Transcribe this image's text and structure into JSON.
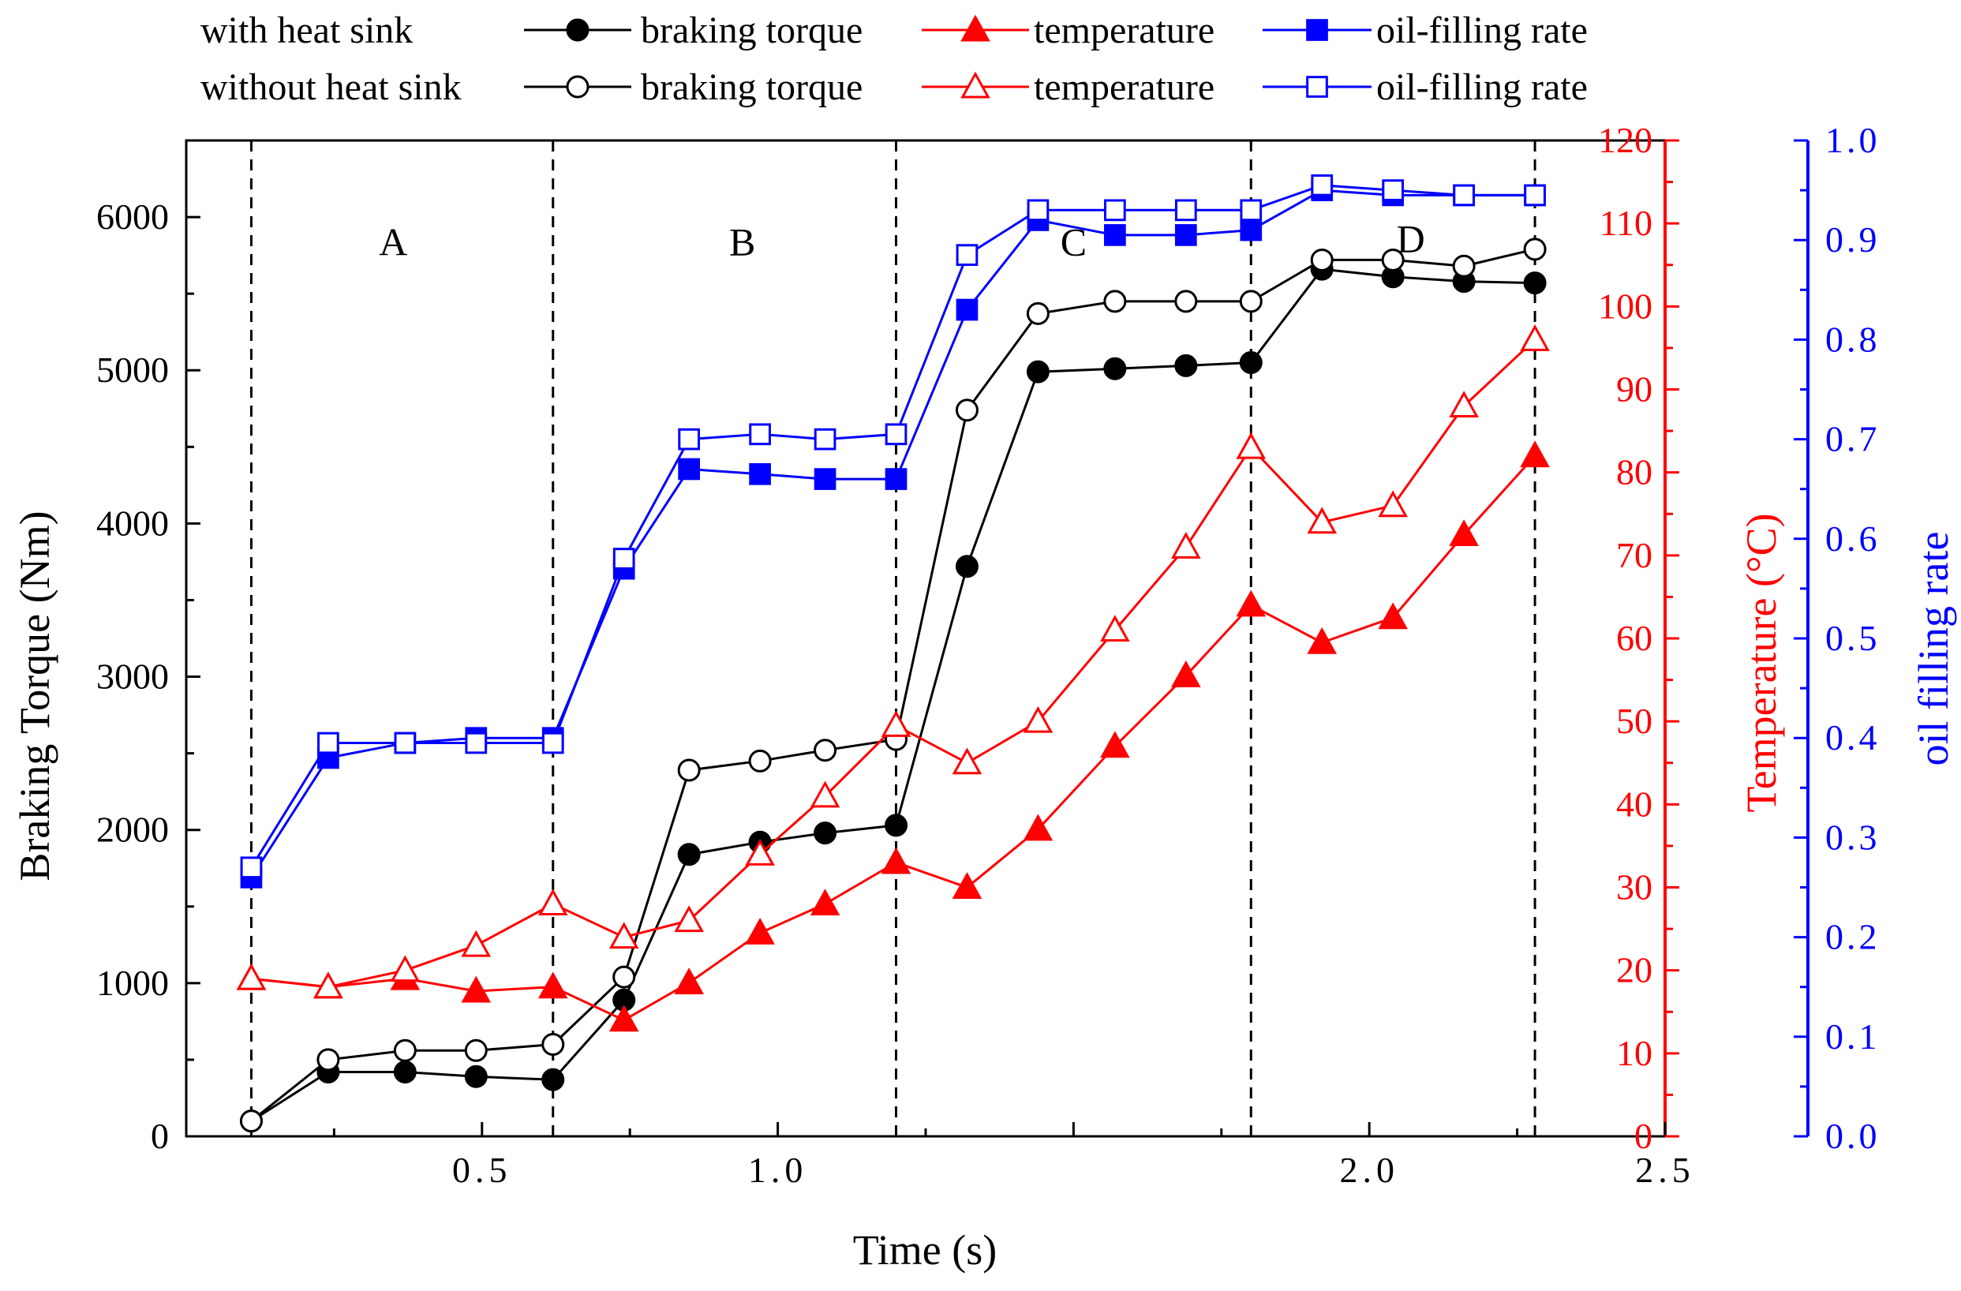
{
  "chart_data": {
    "type": "line",
    "title": "",
    "xlabel": "Time (s)",
    "ylabel_left": "Braking Torque (Nm)",
    "ylabel_right1": "Temperature (°C)",
    "ylabel_right2": "oil filling rate",
    "xlim": [
      0.0,
      2.5
    ],
    "ylim_left": [
      0,
      6500
    ],
    "ylim_right1": [
      0,
      120
    ],
    "ylim_right2": [
      0.0,
      1.0
    ],
    "x_ticks": [
      0.5,
      1.0,
      1.5,
      2.0,
      2.5
    ],
    "x_tick_labels": [
      "0.5",
      "1.0",
      "",
      "2.0",
      "2.5"
    ],
    "y_ticks_left": [
      0,
      1000,
      2000,
      3000,
      4000,
      5000,
      6000
    ],
    "y_tick_labels_left": [
      "0",
      "1000",
      "2000",
      "3000",
      "4000",
      "5000",
      "6000"
    ],
    "y_ticks_right1": [
      0,
      10,
      20,
      30,
      40,
      50,
      60,
      70,
      80,
      90,
      100,
      110,
      120
    ],
    "y_tick_labels_right1": [
      "0",
      "10",
      "20",
      "30",
      "40",
      "50",
      "60",
      "70",
      "80",
      "90",
      "100",
      "110",
      "120"
    ],
    "y_ticks_right2": [
      0.0,
      0.1,
      0.2,
      0.3,
      0.4,
      0.5,
      0.6,
      0.7,
      0.8,
      0.9,
      1.0
    ],
    "y_tick_labels_right2": [
      "0.0",
      "0.1",
      "0.2",
      "0.3",
      "0.4",
      "0.5",
      "0.6",
      "0.7",
      "0.8",
      "0.9",
      "1.0"
    ],
    "grid": false,
    "legend_placement": "top",
    "legend_rows": [
      "with heat sink",
      "without heat sink"
    ],
    "region_boundaries_x": [
      0.11,
      0.62,
      1.2,
      1.8,
      2.28
    ],
    "region_labels": [
      {
        "text": "A",
        "x": 0.35,
        "torque": 5750
      },
      {
        "text": "B",
        "x": 0.94,
        "torque": 5750
      },
      {
        "text": "C",
        "x": 1.5,
        "torque": 5750
      },
      {
        "text": "D",
        "x": 2.07,
        "torque": 5770
      }
    ],
    "series": [
      {
        "name": "braking torque",
        "group": "with heat sink",
        "axis": "torque",
        "color": "#000000",
        "marker": "circle",
        "filled": true,
        "x": [
          0.11,
          0.24,
          0.37,
          0.49,
          0.62,
          0.74,
          0.85,
          0.97,
          1.08,
          1.2,
          1.32,
          1.44,
          1.57,
          1.69,
          1.8,
          1.92,
          2.04,
          2.16,
          2.28
        ],
        "y": [
          100,
          420,
          420,
          390,
          370,
          890,
          1840,
          1920,
          1980,
          2030,
          3720,
          4990,
          5010,
          5030,
          5050,
          5660,
          5610,
          5580,
          5570
        ]
      },
      {
        "name": "braking torque",
        "group": "without heat sink",
        "axis": "torque",
        "color": "#000000",
        "marker": "circle",
        "filled": false,
        "x": [
          0.11,
          0.24,
          0.37,
          0.49,
          0.62,
          0.74,
          0.85,
          0.97,
          1.08,
          1.2,
          1.32,
          1.44,
          1.57,
          1.69,
          1.8,
          1.92,
          2.04,
          2.16,
          2.28
        ],
        "y": [
          100,
          500,
          560,
          560,
          600,
          1040,
          2390,
          2450,
          2520,
          2590,
          4740,
          5370,
          5450,
          5450,
          5450,
          5720,
          5720,
          5680,
          5790
        ]
      },
      {
        "name": "temperature",
        "group": "with heat sink",
        "axis": "temperature",
        "color": "#ff0000",
        "marker": "triangle",
        "filled": true,
        "x": [
          0.11,
          0.24,
          0.37,
          0.49,
          0.62,
          0.74,
          0.85,
          0.97,
          1.08,
          1.2,
          1.32,
          1.44,
          1.57,
          1.69,
          1.8,
          1.92,
          2.04,
          2.16,
          2.28
        ],
        "y": [
          19,
          18,
          19,
          17.5,
          18,
          14,
          18.5,
          24.5,
          28,
          33,
          30,
          37,
          47,
          55.5,
          64,
          59.5,
          62.5,
          72.5,
          82
        ]
      },
      {
        "name": "temperature",
        "group": "without heat sink",
        "axis": "temperature",
        "color": "#ff0000",
        "marker": "triangle",
        "filled": false,
        "x": [
          0.11,
          0.24,
          0.37,
          0.49,
          0.62,
          0.74,
          0.85,
          0.97,
          1.08,
          1.2,
          1.32,
          1.44,
          1.57,
          1.69,
          1.8,
          1.92,
          2.04,
          2.16,
          2.28
        ],
        "y": [
          19,
          18,
          20,
          23,
          28,
          24,
          26,
          34,
          41,
          49.5,
          45,
          50,
          61,
          71,
          83,
          74,
          76,
          88,
          96
        ]
      },
      {
        "name": "oil-filling rate",
        "group": "with heat sink",
        "axis": "oil",
        "color": "#0000ff",
        "marker": "square",
        "filled": true,
        "x": [
          0.11,
          0.24,
          0.37,
          0.49,
          0.62,
          0.74,
          0.85,
          0.97,
          1.08,
          1.2,
          1.32,
          1.44,
          1.57,
          1.69,
          1.8,
          1.92,
          2.04,
          2.16,
          2.28
        ],
        "y": [
          0.26,
          0.38,
          0.395,
          0.4,
          0.4,
          0.57,
          0.67,
          0.665,
          0.66,
          0.66,
          0.83,
          0.92,
          0.905,
          0.905,
          0.91,
          0.95,
          0.945,
          0.945,
          0.945
        ]
      },
      {
        "name": "oil-filling rate",
        "group": "without heat sink",
        "axis": "oil",
        "color": "#0000ff",
        "marker": "square",
        "filled": false,
        "x": [
          0.11,
          0.24,
          0.37,
          0.49,
          0.62,
          0.74,
          0.85,
          0.97,
          1.08,
          1.2,
          1.32,
          1.44,
          1.57,
          1.69,
          1.8,
          1.92,
          2.04,
          2.16,
          2.28
        ],
        "y": [
          0.27,
          0.395,
          0.395,
          0.395,
          0.395,
          0.58,
          0.7,
          0.705,
          0.7,
          0.705,
          0.885,
          0.93,
          0.93,
          0.93,
          0.93,
          0.955,
          0.95,
          0.945,
          0.945
        ]
      }
    ]
  }
}
